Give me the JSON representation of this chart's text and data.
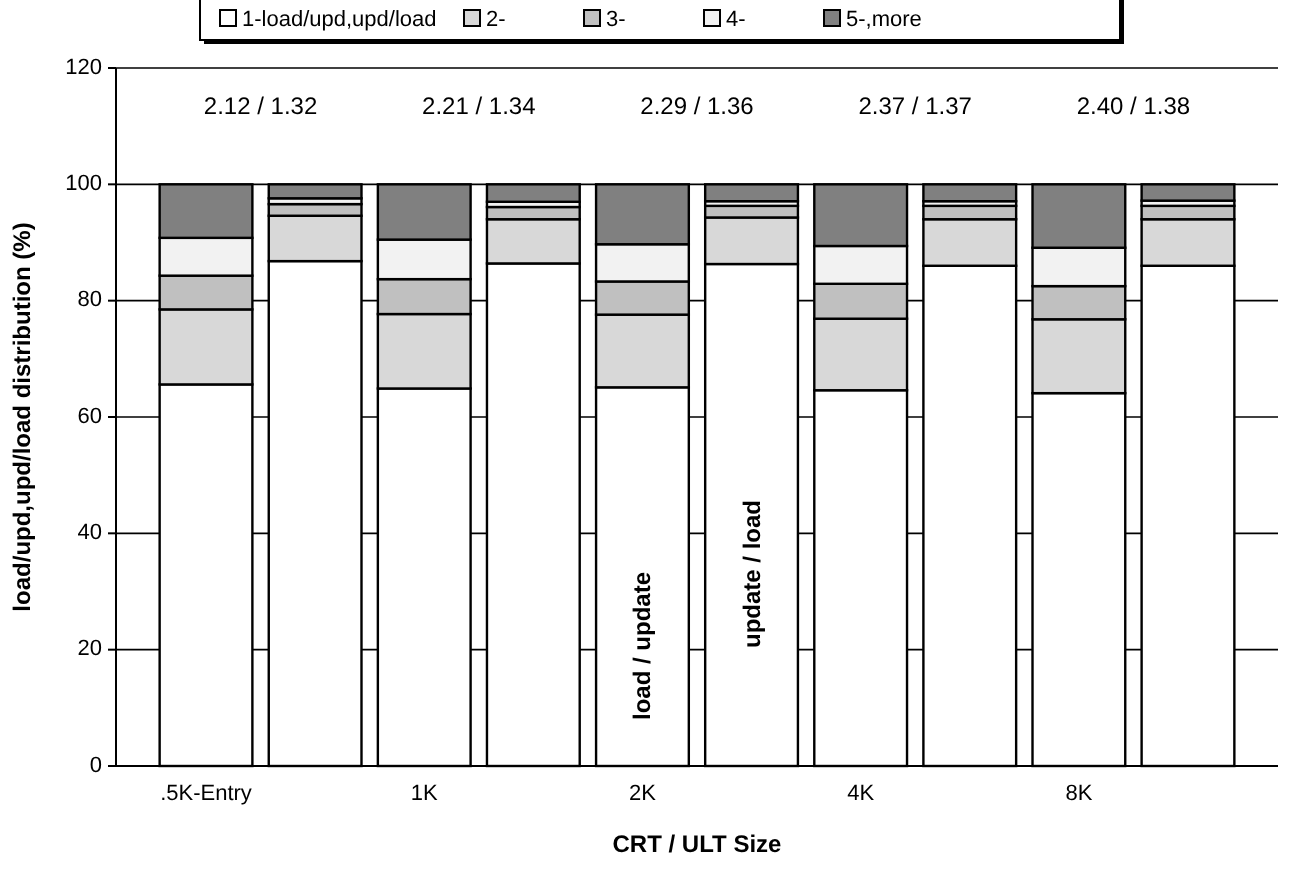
{
  "chart_data": {
    "type": "bar",
    "stacked": true,
    "xlabel": "CRT / ULT Size",
    "ylabel": "load/upd,upd/load distribution (%)",
    "categories": [
      ".5K-Entry",
      null,
      "1K",
      null,
      "2K",
      null,
      "4K",
      null,
      "8K",
      null
    ],
    "series": [
      {
        "name": "1-load/upd,upd/load",
        "color": "#ffffff",
        "values": [
          65.6,
          86.8,
          64.9,
          86.4,
          65.1,
          86.3,
          64.6,
          86.0,
          64.1,
          86.0
        ]
      },
      {
        "name": "2-",
        "color": "#d8d8d8",
        "values": [
          12.9,
          7.8,
          12.8,
          7.6,
          12.5,
          8.0,
          12.3,
          8.0,
          12.7,
          8.0
        ]
      },
      {
        "name": "3-",
        "color": "#c0c0c0",
        "values": [
          5.8,
          2.0,
          6.0,
          2.1,
          5.7,
          2.0,
          6.0,
          2.3,
          5.7,
          2.3
        ]
      },
      {
        "name": "4-",
        "color": "#f2f2f2",
        "values": [
          6.5,
          1.0,
          6.8,
          0.9,
          6.4,
          0.8,
          6.5,
          0.8,
          6.6,
          0.9
        ]
      },
      {
        "name": "5-,more",
        "color": "#808080",
        "values": [
          9.2,
          2.4,
          9.5,
          3.0,
          10.3,
          2.9,
          10.6,
          2.9,
          10.9,
          2.8
        ]
      }
    ],
    "ylim": [
      0,
      120
    ],
    "yticks": [
      0,
      20,
      40,
      60,
      80,
      100,
      120
    ],
    "grid": "y",
    "legend": "top",
    "annotations": [
      "2.12 / 1.32",
      "2.21 / 1.34",
      "2.29 / 1.36",
      "2.37 / 1.37",
      "2.40 / 1.38",
      "load / update",
      "update / load"
    ]
  }
}
